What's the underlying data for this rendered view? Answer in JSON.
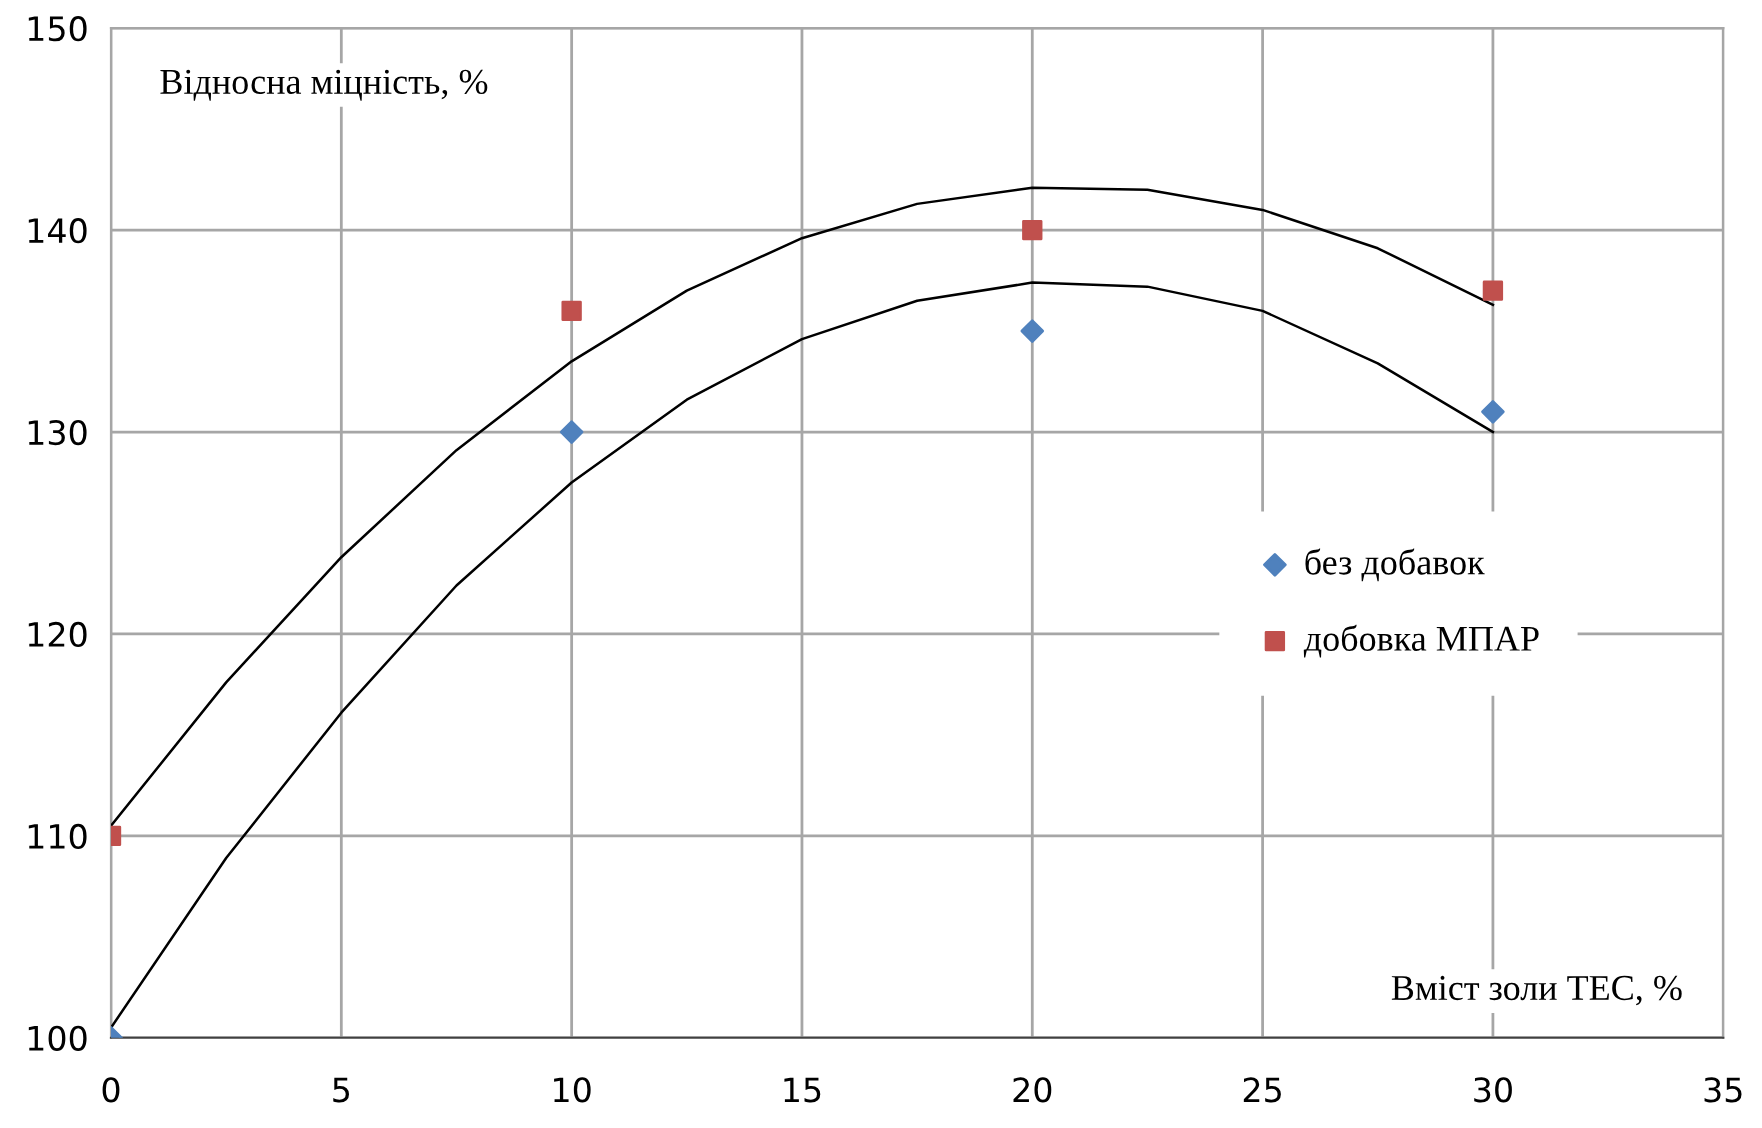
{
  "chart_data": {
    "type": "scatter",
    "xlabel": "Вміст золи ТЕС, %",
    "ylabel": "Відносна міцність, %",
    "xlim": [
      0,
      35
    ],
    "xticks": [
      0,
      5,
      10,
      15,
      20,
      25,
      30,
      35
    ],
    "ylim": [
      100,
      150
    ],
    "yticks": [
      100,
      110,
      120,
      130,
      140,
      150
    ],
    "grid": true,
    "legend": "right",
    "series": [
      {
        "name": "без добавок",
        "color": "#4f81bd",
        "marker": "diamond",
        "x": [
          0,
          10,
          20,
          30
        ],
        "values": [
          100,
          130,
          135,
          131
        ]
      },
      {
        "name": "добовка МПАР",
        "color": "#c0504d",
        "marker": "square",
        "x": [
          0,
          10,
          20,
          30
        ],
        "values": [
          110,
          136,
          140,
          137
        ]
      },
      {
        "type": "line",
        "color": "#000000",
        "marker": "none",
        "x": [
          0,
          2.5,
          5,
          7.5,
          10,
          12.5,
          15,
          17.5,
          20,
          22.5,
          25,
          27.5,
          30
        ],
        "values": [
          100.5,
          108.9,
          116.1,
          122.4,
          127.5,
          131.6,
          134.6,
          136.5,
          137.4,
          137.2,
          136.0,
          133.4,
          130.0
        ]
      },
      {
        "type": "line",
        "color": "#000000",
        "marker": "none",
        "x": [
          0,
          2.5,
          5,
          7.5,
          10,
          12.5,
          15,
          17.5,
          20,
          22.5,
          25,
          27.5,
          30
        ],
        "values": [
          110.5,
          117.6,
          123.8,
          129.1,
          133.5,
          137.0,
          139.6,
          141.3,
          142.1,
          142.0,
          141.0,
          139.1,
          136.3
        ]
      }
    ]
  }
}
